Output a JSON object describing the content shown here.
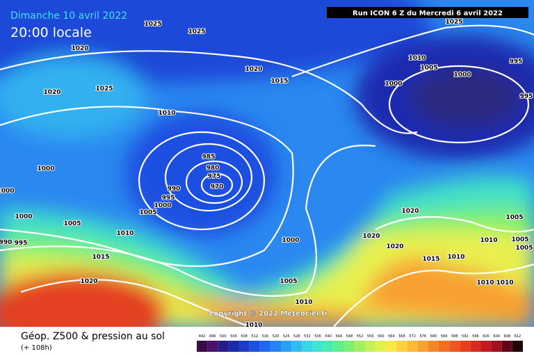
{
  "header": {
    "date": "Dimanche 10 avril 2022",
    "time": "20:00 locale",
    "run": "Run ICON 6 Z du Mercredi 6 avril 2022"
  },
  "copyright": "Copyright © 2022 Meteociel.fr",
  "footer": {
    "title": "Géop. Z500 & pression au sol",
    "lead": "(+ 108h)"
  },
  "isobar_labels": [
    "1025",
    "1025",
    "1020",
    "1020",
    "1015",
    "1020",
    "1025",
    "1010",
    "1000",
    "1000",
    "985",
    "980",
    "975",
    "970",
    "990",
    "995",
    "1000",
    "1005",
    "1000",
    "1005",
    "990",
    "995",
    "1010",
    "1015",
    "1020",
    "1000",
    "1005",
    "1010",
    "1010",
    "1025",
    "1010",
    "1005",
    "1000",
    "1000",
    "995",
    "995",
    "1020",
    "1020",
    "1020",
    "1015",
    "1010",
    "1005",
    "1010",
    "1005",
    "1005",
    "1010",
    "1010"
  ],
  "scale": {
    "values": [
      492,
      496,
      500,
      504,
      508,
      512,
      516,
      520,
      524,
      528,
      532,
      536,
      540,
      544,
      548,
      552,
      556,
      560,
      564,
      568,
      572,
      576,
      580,
      584,
      588,
      592,
      596,
      600,
      604,
      608,
      612
    ],
    "colors": [
      "#3a0a4a",
      "#4a0f6a",
      "#2a1a8a",
      "#1a2aa8",
      "#1c3cc8",
      "#1e50e0",
      "#2068f0",
      "#2484f4",
      "#2aa0f4",
      "#30bcf0",
      "#38d4e8",
      "#40e4d0",
      "#48ecb0",
      "#5cf08c",
      "#7cf070",
      "#a0f060",
      "#c4f058",
      "#e4f050",
      "#f8e848",
      "#fcd040",
      "#fcb838",
      "#f8a030",
      "#f48828",
      "#f07020",
      "#ec5820",
      "#e44020",
      "#d82c20",
      "#c01c20",
      "#a01020",
      "#600818",
      "#200408"
    ]
  }
}
